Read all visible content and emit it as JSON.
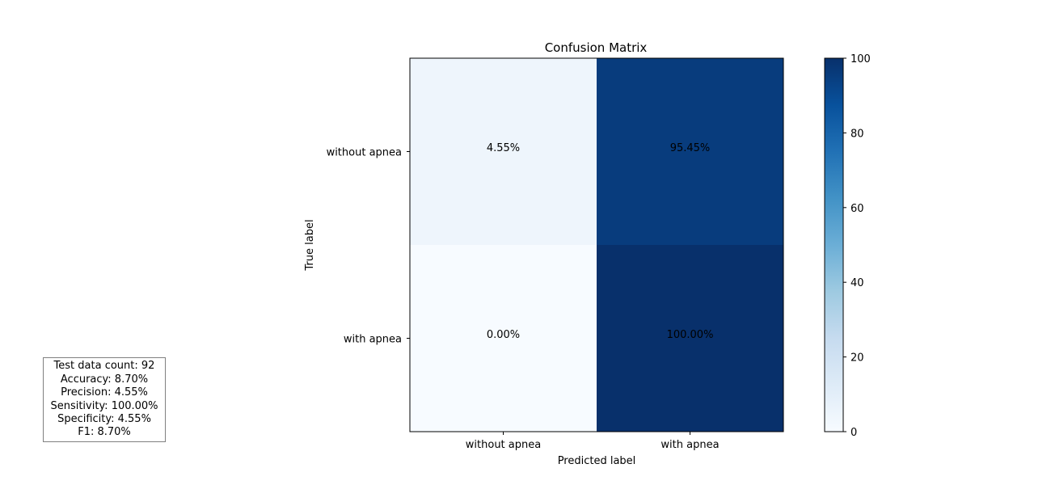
{
  "chart_data": {
    "type": "heatmap",
    "title": "Confusion Matrix",
    "xlabel": "Predicted label",
    "ylabel": "True label",
    "x_categories": [
      "without apnea",
      "with apnea"
    ],
    "y_categories": [
      "without apnea",
      "with apnea"
    ],
    "values": [
      [
        4.55,
        95.45
      ],
      [
        0.0,
        100.0
      ]
    ],
    "cell_labels": [
      [
        "4.55%",
        "95.45%"
      ],
      [
        "0.00%",
        "100.00%"
      ]
    ],
    "colormap": "Blues",
    "colorbar": {
      "min": 0,
      "max": 100,
      "ticks": [
        0,
        20,
        40,
        60,
        80,
        100
      ]
    }
  },
  "stats": {
    "lines": [
      "Test data count: 92",
      "Accuracy: 8.70%",
      "Precision: 4.55%",
      "Sensitivity: 100.00%",
      "Specificity: 4.55%",
      "F1: 8.70%"
    ]
  }
}
